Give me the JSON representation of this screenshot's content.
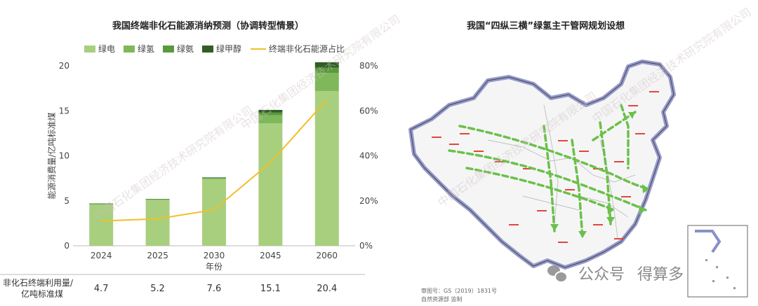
{
  "left_title": "我国终端非化石能源消纳预测（协调转型情景）",
  "right_title": "我国“四纵三横”绿氢主干管网规划设想",
  "chart_data": {
    "type": "bar",
    "stacked": true,
    "categories": [
      "2024",
      "2025",
      "2030",
      "2045",
      "2060"
    ],
    "series": [
      {
        "name": "绿电",
        "color": "#a8cf7e",
        "values": [
          4.6,
          5.1,
          7.4,
          13.6,
          17.2
        ]
      },
      {
        "name": "绿氢",
        "color": "#7fb85a",
        "values": [
          0.05,
          0.05,
          0.1,
          0.9,
          2.0
        ]
      },
      {
        "name": "绿氨",
        "color": "#5a9a3c",
        "values": [
          0.02,
          0.02,
          0.05,
          0.3,
          0.6
        ]
      },
      {
        "name": "绿甲醇",
        "color": "#2f5f24",
        "values": [
          0.03,
          0.03,
          0.05,
          0.3,
          0.6
        ]
      }
    ],
    "line": {
      "name": "终端非化石能源占比",
      "color": "#f0bf2a",
      "values": [
        11,
        12,
        16,
        37,
        65
      ]
    },
    "xlabel": "年份",
    "ylabel": "能源消费量/亿吨标准煤",
    "ylim": [
      0,
      20
    ],
    "yticks": [
      0,
      5,
      10,
      15,
      20
    ],
    "y2lim": [
      0,
      80
    ],
    "y2ticks": [
      "0%",
      "20%",
      "40%",
      "60%",
      "80%"
    ],
    "legend_position": "top",
    "table": {
      "row_label_line1": "非化石终端利用量/",
      "row_label_line2": "亿吨标准煤",
      "values": [
        "4.7",
        "5.2",
        "7.6",
        "15.1",
        "20.4"
      ]
    }
  },
  "map": {
    "approval_no": "审图号：GS（2019）1831号",
    "supervisor": "自然资源部 监制"
  },
  "watermark": "中国石化集团经济技术研究院有限公司",
  "wechat": {
    "label1": "公众号",
    "label2": "得算多"
  }
}
